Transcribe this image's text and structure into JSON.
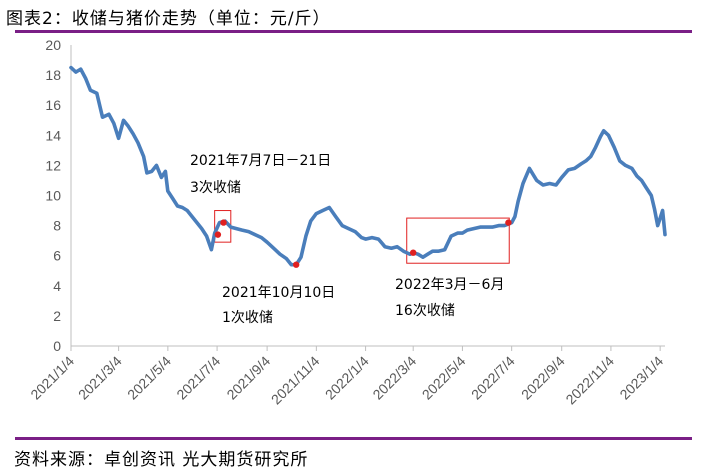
{
  "header": {
    "title": "图表2：收储与猪价走势（单位：元/斤）"
  },
  "footer": {
    "source": "资料来源：卓创资讯 光大期货研究所"
  },
  "colors": {
    "line": "#4a7ebb",
    "accent": "#7a1f86",
    "marker": "#e02020",
    "box": "#e02020"
  },
  "chart_data": {
    "type": "line",
    "title": "",
    "xlabel": "",
    "ylabel": "",
    "ylim": [
      0,
      20
    ],
    "yticks": [
      0,
      2,
      4,
      6,
      8,
      10,
      12,
      14,
      16,
      18,
      20
    ],
    "xlim": [
      "2021-01-04",
      "2023-01-10"
    ],
    "xticks": [
      "2021/1/4",
      "2021/3/4",
      "2021/5/4",
      "2021/7/4",
      "2021/9/4",
      "2021/11/4",
      "2022/1/4",
      "2022/3/4",
      "2022/5/4",
      "2022/7/4",
      "2022/9/4",
      "2022/11/4",
      "2023/1/4"
    ],
    "grid": false,
    "series": [
      {
        "x": [
          "2021-01-04",
          "2021-01-10",
          "2021-01-16",
          "2021-01-22",
          "2021-01-28",
          "2021-02-05",
          "2021-02-12",
          "2021-02-20",
          "2021-02-26",
          "2021-03-04",
          "2021-03-10",
          "2021-03-16",
          "2021-03-22",
          "2021-03-28",
          "2021-04-04",
          "2021-04-08",
          "2021-04-14",
          "2021-04-20",
          "2021-04-26",
          "2021-05-01",
          "2021-05-04",
          "2021-05-10",
          "2021-05-16",
          "2021-05-22",
          "2021-05-28",
          "2021-06-03",
          "2021-06-09",
          "2021-06-15",
          "2021-06-21",
          "2021-06-27",
          "2021-07-01",
          "2021-07-07",
          "2021-07-14",
          "2021-07-21",
          "2021-07-28",
          "2021-08-04",
          "2021-08-12",
          "2021-08-20",
          "2021-08-28",
          "2021-09-04",
          "2021-09-12",
          "2021-09-20",
          "2021-09-28",
          "2021-10-04",
          "2021-10-10",
          "2021-10-16",
          "2021-10-22",
          "2021-10-28",
          "2021-11-04",
          "2021-11-12",
          "2021-11-20",
          "2021-11-28",
          "2021-12-06",
          "2021-12-14",
          "2021-12-22",
          "2021-12-30",
          "2022-01-04",
          "2022-01-12",
          "2022-01-20",
          "2022-01-28",
          "2022-02-05",
          "2022-02-12",
          "2022-02-20",
          "2022-02-28",
          "2022-03-04",
          "2022-03-10",
          "2022-03-16",
          "2022-03-22",
          "2022-03-28",
          "2022-04-04",
          "2022-04-12",
          "2022-04-20",
          "2022-04-28",
          "2022-05-04",
          "2022-05-10",
          "2022-05-18",
          "2022-05-26",
          "2022-06-03",
          "2022-06-10",
          "2022-06-18",
          "2022-06-25",
          "2022-06-30",
          "2022-07-04",
          "2022-07-08",
          "2022-07-12",
          "2022-07-18",
          "2022-07-26",
          "2022-08-04",
          "2022-08-12",
          "2022-08-20",
          "2022-08-28",
          "2022-09-04",
          "2022-09-12",
          "2022-09-20",
          "2022-09-28",
          "2022-10-04",
          "2022-10-10",
          "2022-10-16",
          "2022-10-22",
          "2022-10-26",
          "2022-11-01",
          "2022-11-08",
          "2022-11-15",
          "2022-11-22",
          "2022-11-30",
          "2022-12-06",
          "2022-12-12",
          "2022-12-18",
          "2022-12-24",
          "2022-12-28",
          "2023-01-01",
          "2023-01-04",
          "2023-01-07",
          "2023-01-10"
        ],
        "y": [
          18.5,
          18.2,
          18.4,
          17.8,
          17.0,
          16.8,
          15.2,
          15.4,
          14.8,
          13.8,
          15.0,
          14.6,
          14.1,
          13.5,
          12.6,
          11.5,
          11.6,
          12.0,
          11.2,
          11.6,
          10.3,
          9.8,
          9.3,
          9.2,
          9.0,
          8.6,
          8.2,
          7.8,
          7.3,
          6.4,
          7.5,
          8.2,
          8.3,
          7.9,
          7.8,
          7.7,
          7.6,
          7.4,
          7.2,
          6.9,
          6.5,
          6.1,
          5.8,
          5.4,
          5.4,
          5.9,
          7.3,
          8.3,
          8.8,
          9.0,
          9.2,
          8.6,
          8.0,
          7.8,
          7.6,
          7.2,
          7.1,
          7.2,
          7.1,
          6.6,
          6.5,
          6.6,
          6.3,
          6.1,
          6.2,
          6.1,
          5.9,
          6.1,
          6.3,
          6.3,
          6.4,
          7.3,
          7.5,
          7.5,
          7.7,
          7.8,
          7.9,
          7.9,
          7.9,
          8.0,
          8.0,
          8.1,
          8.2,
          8.6,
          9.6,
          10.8,
          11.8,
          11.0,
          10.7,
          10.8,
          10.7,
          11.2,
          11.7,
          11.8,
          12.1,
          12.3,
          12.6,
          13.2,
          13.9,
          14.3,
          14.0,
          13.2,
          12.3,
          12.0,
          11.8,
          11.3,
          11.0,
          10.5,
          10.0,
          9.1,
          8.0,
          8.5,
          9.0,
          7.4
        ]
      }
    ],
    "markers": [
      {
        "x": "2021-07-05",
        "y": 7.4
      },
      {
        "x": "2021-07-12",
        "y": 8.2
      },
      {
        "x": "2021-10-10",
        "y": 5.4
      },
      {
        "x": "2022-03-04",
        "y": 6.2
      },
      {
        "x": "2022-06-30",
        "y": 8.2
      }
    ],
    "boxes": [
      {
        "x0": "2021-07-01",
        "x1": "2021-07-21",
        "y0": 6.9,
        "y1": 9.0
      },
      {
        "x0": "2022-02-24",
        "x1": "2022-07-01",
        "y0": 5.5,
        "y1": 8.5
      }
    ],
    "annotations": [
      {
        "id": "anno1",
        "lines": [
          "2021年7月7日－21日",
          "3次收储"
        ]
      },
      {
        "id": "anno2",
        "lines": [
          "2021年10月10日",
          "1次收储"
        ]
      },
      {
        "id": "anno3",
        "lines": [
          "2022年3月－6月",
          "16次收储"
        ]
      }
    ]
  }
}
